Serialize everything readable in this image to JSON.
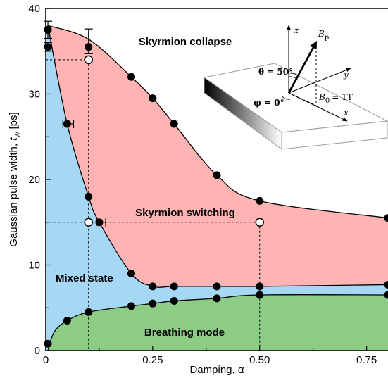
{
  "chart_data": {
    "type": "scatter",
    "xlabel": "Damping, α",
    "ylabel_main": "Gaussian pulse width, ",
    "ylabel_var": "t",
    "ylabel_sub": "w",
    "ylabel_unit": " [ps]",
    "xlim": [
      0,
      0.8
    ],
    "ylim": [
      0,
      40
    ],
    "x_ticks": [
      0,
      0.25,
      0.5,
      0.75
    ],
    "x_tick_labels": [
      "0",
      "0.25",
      "0.50",
      "0.75"
    ],
    "y_ticks": [
      0,
      10,
      20,
      30,
      40
    ],
    "y_tick_labels": [
      "0",
      "10",
      "20",
      "30",
      "40"
    ],
    "regions": {
      "collapse": {
        "label": "Skyrmion collapse",
        "color": "#ffb3b3"
      },
      "switching": {
        "label": "Skyrmion switching",
        "color": "#ffb3b3"
      },
      "mixed": {
        "label": "Mixed state",
        "color": "#a6d8f5"
      },
      "breathing": {
        "label": "Breathing mode",
        "color": "#8ccc85"
      }
    },
    "series": [
      {
        "role": "upper-boundary",
        "x": [
          0.005,
          0.005,
          0.1,
          0.2,
          0.25,
          0.3,
          0.4,
          0.5,
          0.8
        ],
        "y": [
          37.5,
          35.5,
          35.5,
          32,
          29.5,
          26.5,
          20.5,
          17.5,
          15.5
        ]
      },
      {
        "role": "mixed-upper-boundary",
        "x": [
          0.005,
          0.05,
          0.1,
          0.125,
          0.2,
          0.25,
          0.3,
          0.4,
          0.5,
          0.8
        ],
        "y": [
          37.5,
          26.5,
          18,
          15,
          9,
          7.5,
          7.5,
          7.5,
          7.5,
          7.7
        ]
      },
      {
        "role": "breathing-upper-boundary",
        "x": [
          0.005,
          0.05,
          0.1,
          0.2,
          0.25,
          0.3,
          0.4,
          0.5,
          0.8
        ],
        "y": [
          0.8,
          3.5,
          4.5,
          5.2,
          5.5,
          5.8,
          6.1,
          6.5,
          6.5
        ]
      }
    ],
    "error_bars": [
      {
        "x": 0.005,
        "y": 37.5,
        "y_lo": 36.5,
        "y_hi": 38.5
      },
      {
        "x": 0.005,
        "y": 35.5,
        "y_lo": 35,
        "y_hi": 36
      },
      {
        "x": 0.1,
        "y": 35.5,
        "y_lo": 34.7,
        "y_hi": 37.6
      },
      {
        "x": 0.05,
        "y": 26.5,
        "x_lo": 0.04,
        "x_hi": 0.065
      },
      {
        "x": 0.125,
        "y": 15,
        "x_lo": 0.118,
        "x_hi": 0.14
      }
    ],
    "open_points": [
      {
        "x": 0.1,
        "y": 34
      },
      {
        "x": 0.1,
        "y": 15
      },
      {
        "x": 0.5,
        "y": 15
      }
    ],
    "guides": [
      {
        "from": [
          0,
          34
        ],
        "to": [
          0.1,
          34
        ]
      },
      {
        "from": [
          0.1,
          34
        ],
        "to": [
          0.1,
          0
        ]
      },
      {
        "from": [
          0,
          15
        ],
        "to": [
          0.5,
          15
        ]
      },
      {
        "from": [
          0.5,
          15
        ],
        "to": [
          0.5,
          0
        ]
      }
    ]
  },
  "inset": {
    "z_label": "z",
    "y_label": "y",
    "x_label": "x",
    "bp_base": "B",
    "bp_sub": "p",
    "theta_label": "θ = 50°",
    "phi_label": "φ = 0°",
    "b0_base": "B",
    "b0_sub": "0",
    "b0_value": "= 1T"
  }
}
